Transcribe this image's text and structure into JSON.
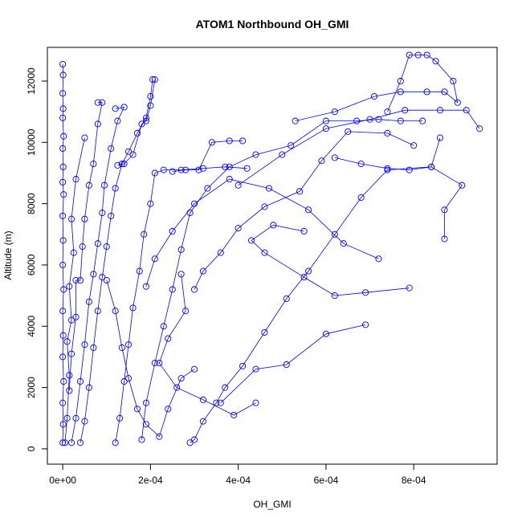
{
  "chart_data": {
    "type": "line",
    "title": "ATOM1 Northbound OH_GMI",
    "xlabel": "OH_GMI",
    "ylabel": "Altitude (m)",
    "xlim": [
      -3.5e-05,
      0.00099
    ],
    "ylim": [
      -500,
      13100
    ],
    "x_ticks": [
      0,
      0.0002,
      0.0004,
      0.0006,
      0.0008
    ],
    "x_tick_labels": [
      "0e+00",
      "2e-04",
      "4e-04",
      "6e-04",
      "8e-04"
    ],
    "y_ticks": [
      0,
      2000,
      4000,
      6000,
      8000,
      10000,
      12000
    ],
    "y_tick_labels": [
      "0",
      "2000",
      "4000",
      "6000",
      "8000",
      "10000",
      "12000"
    ],
    "grid": false,
    "marker": "open-circle",
    "color": "#0000ff",
    "series": [
      {
        "points": [
          [
            0,
            200
          ],
          [
            1e-06,
            800
          ],
          [
            0,
            1500
          ],
          [
            2e-06,
            2200
          ],
          [
            0,
            3000
          ],
          [
            1e-06,
            3700
          ],
          [
            0,
            4500
          ],
          [
            2e-06,
            5200
          ],
          [
            0,
            6000
          ],
          [
            1e-06,
            6800
          ],
          [
            0,
            7600
          ],
          [
            2e-06,
            8300
          ],
          [
            0,
            8700
          ],
          [
            1e-06,
            9200
          ],
          [
            0,
            9800
          ],
          [
            2e-06,
            10200
          ],
          [
            0,
            10800
          ],
          [
            1e-06,
            11100
          ],
          [
            0,
            11600
          ],
          [
            1e-06,
            12200
          ],
          [
            0,
            12550
          ]
        ]
      },
      {
        "points": [
          [
            5e-06,
            200
          ],
          [
            1e-05,
            1000
          ],
          [
            1.5e-05,
            2400
          ],
          [
            1e-05,
            3500
          ],
          [
            2e-05,
            4200
          ],
          [
            1.5e-05,
            5300
          ],
          [
            2.5e-05,
            6400
          ],
          [
            2e-05,
            7500
          ],
          [
            3e-05,
            8800
          ],
          [
            5e-05,
            10150
          ]
        ]
      },
      {
        "points": [
          [
            4e-05,
            200
          ],
          [
            5e-05,
            900
          ],
          [
            6e-05,
            2000
          ],
          [
            7e-05,
            3300
          ],
          [
            8e-05,
            4500
          ],
          [
            9e-05,
            5600
          ],
          [
            0.0001,
            6600
          ],
          [
            0.00011,
            7600
          ],
          [
            0.00012,
            8500
          ],
          [
            0.000135,
            9300
          ],
          [
            0.00015,
            9700
          ],
          [
            0.00017,
            10300
          ],
          [
            0.00019,
            10800
          ],
          [
            0.0002,
            11500
          ],
          [
            0.000205,
            12050
          ]
        ]
      },
      {
        "points": [
          [
            0.00012,
            200
          ],
          [
            0.00013,
            1000
          ],
          [
            0.00014,
            2200
          ],
          [
            0.00015,
            3400
          ],
          [
            0.00016,
            4600
          ],
          [
            0.000175,
            5800
          ],
          [
            0.000185,
            7000
          ],
          [
            0.0002,
            8000
          ],
          [
            0.00021,
            9000
          ],
          [
            0.00023,
            9100
          ],
          [
            0.00027,
            9100
          ],
          [
            0.00032,
            9150
          ],
          [
            0.00037,
            9200
          ],
          [
            0.00042,
            9150
          ]
        ]
      },
      {
        "points": [
          [
            0.00018,
            300
          ],
          [
            0.00019,
            1500
          ],
          [
            0.00021,
            2800
          ],
          [
            0.00023,
            4000
          ],
          [
            0.00025,
            5200
          ],
          [
            0.00027,
            6500
          ],
          [
            0.00029,
            7700
          ],
          [
            0.00033,
            8500
          ],
          [
            0.00038,
            9200
          ],
          [
            0.00044,
            9600
          ],
          [
            0.00052,
            9900
          ],
          [
            0.0006,
            10700
          ],
          [
            0.00067,
            10700
          ],
          [
            0.00072,
            10750
          ],
          [
            0.00077,
            10700
          ],
          [
            0.00082,
            10700
          ]
        ]
      },
      {
        "points": [
          [
            0.00029,
            200
          ],
          [
            0.0003,
            300
          ],
          [
            0.00032,
            900
          ],
          [
            0.00035,
            1500
          ],
          [
            0.00037,
            2000
          ],
          [
            0.00041,
            2700
          ],
          [
            0.00046,
            3800
          ],
          [
            0.00051,
            4900
          ],
          [
            0.00056,
            5800
          ],
          [
            0.00062,
            7000
          ],
          [
            0.00068,
            8200
          ],
          [
            0.00074,
            9100
          ],
          [
            0.00084,
            9200
          ],
          [
            0.00086,
            10150
          ]
        ]
      },
      {
        "points": [
          [
            0.00036,
            1500
          ],
          [
            0.00044,
            2600
          ],
          [
            0.00051,
            2750
          ],
          [
            0.0006,
            3750
          ],
          [
            0.00069,
            4050
          ]
        ]
      },
      {
        "points": [
          [
            0.00079,
            5250
          ],
          [
            0.00069,
            5100
          ],
          [
            0.00062,
            5000
          ],
          [
            0.00055,
            5600
          ],
          [
            0.00046,
            6400
          ],
          [
            0.00043,
            6800
          ],
          [
            0.00048,
            7300
          ],
          [
            0.00055,
            7100
          ]
        ]
      },
      {
        "points": [
          [
            0.00087,
            6850
          ],
          [
            0.00087,
            7800
          ],
          [
            0.00091,
            8600
          ],
          [
            0.00084,
            9200
          ],
          [
            0.00079,
            9100
          ],
          [
            0.00074,
            9150
          ],
          [
            0.00068,
            9300
          ],
          [
            0.00062,
            9500
          ]
        ]
      },
      {
        "points": [
          [
            0.0004,
            8600
          ],
          [
            0.0005,
            9600
          ],
          [
            0.0006,
            10450
          ],
          [
            0.0007,
            10750
          ],
          [
            0.00078,
            11050
          ],
          [
            0.00086,
            11050
          ],
          [
            0.00092,
            11050
          ],
          [
            0.00095,
            10450
          ]
        ]
      },
      {
        "points": [
          [
            0.00074,
            11000
          ],
          [
            0.00077,
            12000
          ],
          [
            0.00079,
            12850
          ],
          [
            0.00081,
            12850
          ],
          [
            0.00083,
            12850
          ],
          [
            0.00085,
            12650
          ],
          [
            0.00089,
            12000
          ],
          [
            0.0009,
            11300
          ],
          [
            0.00087,
            11650
          ],
          [
            0.00083,
            11650
          ],
          [
            0.00077,
            11650
          ],
          [
            0.00071,
            11500
          ],
          [
            0.00062,
            11000
          ],
          [
            0.00053,
            10700
          ]
        ]
      },
      {
        "points": [
          [
            0.00021,
            12050
          ],
          [
            0.0002,
            11200
          ],
          [
            0.00019,
            10700
          ],
          [
            0.00018,
            10600
          ],
          [
            0.00016,
            9600
          ],
          [
            0.00014,
            9300
          ],
          [
            0.000125,
            9250
          ]
        ]
      },
      {
        "points": [
          [
            8e-05,
            11300
          ],
          [
            9e-05,
            11300
          ],
          [
            8e-05,
            10600
          ],
          [
            7e-05,
            9300
          ],
          [
            6e-05,
            8600
          ],
          [
            5e-05,
            7500
          ],
          [
            4.5e-05,
            6600
          ],
          [
            4e-05,
            5500
          ],
          [
            3e-05,
            5500
          ],
          [
            3e-05,
            4300
          ],
          [
            2e-05,
            3100
          ],
          [
            1.5e-05,
            1900
          ]
        ]
      },
      {
        "points": [
          [
            0.00012,
            11100
          ],
          [
            0.00014,
            11150
          ],
          [
            0.000125,
            10700
          ],
          [
            0.00011,
            9800
          ],
          [
            9.5e-05,
            8600
          ],
          [
            9e-05,
            7700
          ],
          [
            8e-05,
            6700
          ],
          [
            7e-05,
            5700
          ],
          [
            6e-05,
            4800
          ],
          [
            5e-05,
            3400
          ],
          [
            4e-05,
            2200
          ],
          [
            3e-05,
            1000
          ],
          [
            2e-05,
            200
          ]
        ]
      },
      {
        "points": [
          [
            0.00027,
            5700
          ],
          [
            0.00028,
            4500
          ],
          [
            0.00024,
            3600
          ],
          [
            0.00022,
            2800
          ],
          [
            0.00026,
            2000
          ],
          [
            0.00032,
            1600
          ],
          [
            0.00039,
            1100
          ],
          [
            0.00044,
            1500
          ]
        ]
      },
      {
        "points": [
          [
            0.00072,
            6200
          ],
          [
            0.00064,
            6700
          ],
          [
            0.00056,
            7800
          ],
          [
            0.00047,
            8500
          ],
          [
            0.00038,
            8800
          ],
          [
            0.0003,
            8000
          ],
          [
            0.00025,
            7100
          ],
          [
            0.00021,
            6200
          ],
          [
            0.00019,
            5300
          ]
        ]
      },
      {
        "points": [
          [
            0.0008,
            9900
          ],
          [
            0.00074,
            10300
          ],
          [
            0.00065,
            10350
          ],
          [
            0.00059,
            9400
          ],
          [
            0.00054,
            8400
          ],
          [
            0.00046,
            7900
          ],
          [
            0.0004,
            7200
          ],
          [
            0.00036,
            6400
          ],
          [
            0.00032,
            5800
          ],
          [
            0.0003,
            5200
          ]
        ]
      },
      {
        "points": [
          [
            0.00025,
            9050
          ],
          [
            0.00028,
            9100
          ],
          [
            0.00031,
            9100
          ],
          [
            0.00034,
            10000
          ],
          [
            0.00038,
            10050
          ],
          [
            0.00041,
            10050
          ]
        ]
      },
      {
        "points": [
          [
            0.0001,
            5500
          ],
          [
            0.00012,
            4500
          ],
          [
            0.000135,
            3300
          ],
          [
            0.00015,
            2300
          ],
          [
            0.00017,
            1300
          ],
          [
            0.00019,
            800
          ],
          [
            0.00022,
            400
          ],
          [
            0.00024,
            1300
          ],
          [
            0.00027,
            2300
          ],
          [
            0.0003,
            2600
          ]
        ]
      }
    ]
  }
}
